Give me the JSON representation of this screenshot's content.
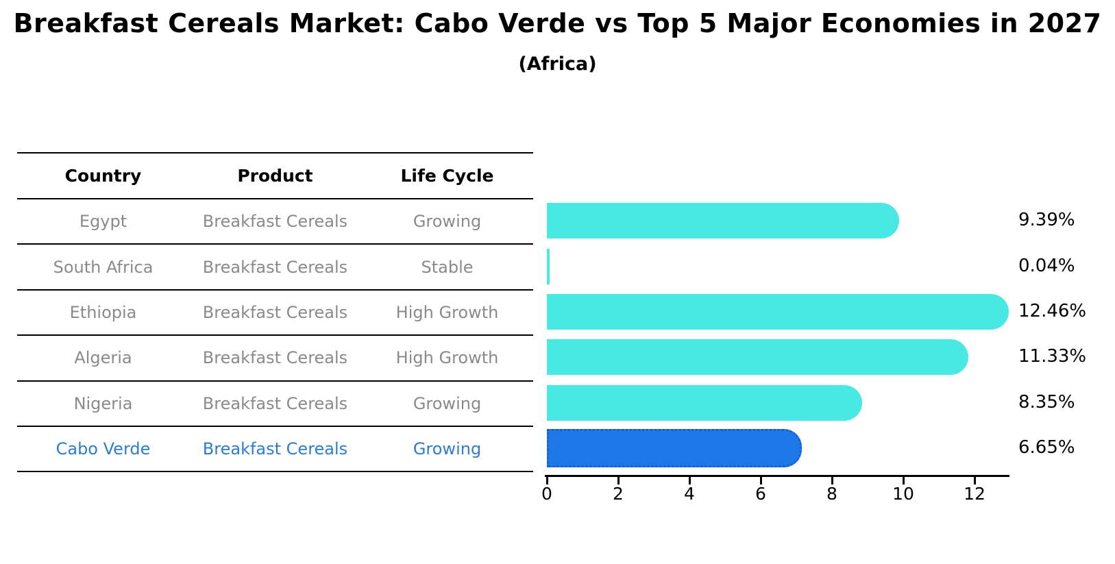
{
  "title": "Breakfast Cereals Market: Cabo Verde vs Top 5 Major Economies in 2027",
  "subtitle": "(Africa)",
  "table": {
    "columns": [
      "Country",
      "Product",
      "Life Cycle"
    ],
    "rows": [
      {
        "country": "Egypt",
        "product": "Breakfast Cereals",
        "life_cycle": "Growing",
        "highlight": false
      },
      {
        "country": "South Africa",
        "product": "Breakfast Cereals",
        "life_cycle": "Stable",
        "highlight": false
      },
      {
        "country": "Ethiopia",
        "product": "Breakfast Cereals",
        "life_cycle": "High Growth",
        "highlight": false
      },
      {
        "country": "Algeria",
        "product": "Breakfast Cereals",
        "life_cycle": "High Growth",
        "highlight": false
      },
      {
        "country": "Nigeria",
        "product": "Breakfast Cereals",
        "life_cycle": "Growing",
        "highlight": false
      },
      {
        "country": "Cabo Verde",
        "product": "Breakfast Cereals",
        "life_cycle": "Growing",
        "highlight": true
      }
    ]
  },
  "chart_data": {
    "type": "bar",
    "orientation": "horizontal",
    "title": "Breakfast Cereals Market: Cabo Verde vs Top 5 Major Economies in 2027",
    "subtitle": "(Africa)",
    "categories": [
      "Egypt",
      "South Africa",
      "Ethiopia",
      "Algeria",
      "Nigeria",
      "Cabo Verde"
    ],
    "values": [
      9.39,
      0.04,
      12.46,
      11.33,
      8.35,
      6.65
    ],
    "value_labels": [
      "9.39%",
      "0.04%",
      "12.46%",
      "11.33%",
      "8.35%",
      "6.65%"
    ],
    "xlabel": "",
    "ylabel": "",
    "xticks": [
      0,
      2,
      4,
      6,
      8,
      10,
      12
    ],
    "xlim": [
      0,
      13
    ],
    "grid": false,
    "legend": false,
    "highlight_index": 5
  },
  "colors": {
    "bar": "#49e8e4",
    "highlight_bar": "#1e78e8",
    "highlight_border": "#1a5ecc",
    "highlight_text": "#2e7cd1",
    "table_text": "#8a8a8a",
    "heading_text": "#000000"
  }
}
